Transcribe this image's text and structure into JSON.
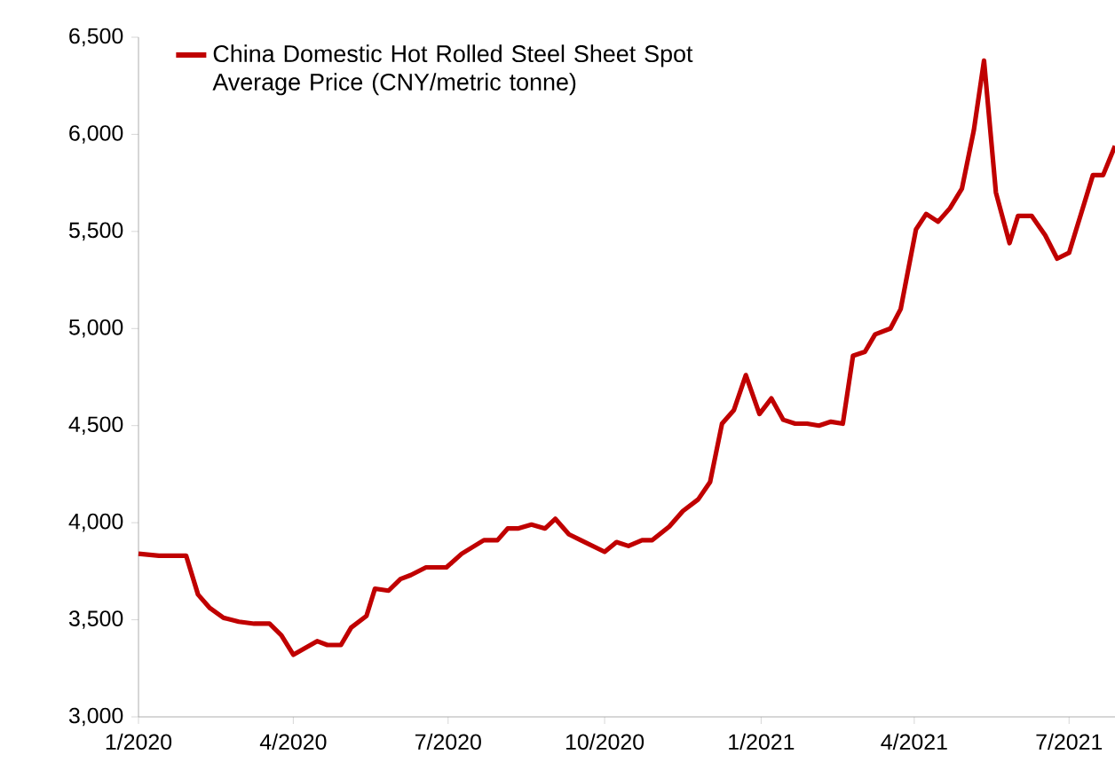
{
  "chart_data": {
    "type": "line",
    "x": [
      "2020-01-01",
      "2020-01-13",
      "2020-01-29",
      "2020-02-05",
      "2020-02-12",
      "2020-02-20",
      "2020-02-29",
      "2020-03-09",
      "2020-03-18",
      "2020-03-25",
      "2020-04-01",
      "2020-04-15",
      "2020-04-21",
      "2020-04-29",
      "2020-05-05",
      "2020-05-14",
      "2020-05-19",
      "2020-05-27",
      "2020-06-03",
      "2020-06-09",
      "2020-06-18",
      "2020-06-30",
      "2020-07-09",
      "2020-07-22",
      "2020-07-30",
      "2020-08-05",
      "2020-08-11",
      "2020-08-19",
      "2020-08-27",
      "2020-09-02",
      "2020-09-10",
      "2020-09-17",
      "2020-10-01",
      "2020-10-08",
      "2020-10-15",
      "2020-10-23",
      "2020-10-29",
      "2020-11-08",
      "2020-11-16",
      "2020-11-25",
      "2020-12-02",
      "2020-12-09",
      "2020-12-16",
      "2020-12-23",
      "2020-12-31",
      "2021-01-07",
      "2021-01-14",
      "2021-01-21",
      "2021-01-28",
      "2021-02-04",
      "2021-02-11",
      "2021-02-18",
      "2021-02-24",
      "2021-03-03",
      "2021-03-09",
      "2021-03-18",
      "2021-03-24",
      "2021-04-02",
      "2021-04-08",
      "2021-04-15",
      "2021-04-22",
      "2021-04-29",
      "2021-05-06",
      "2021-05-12",
      "2021-05-19",
      "2021-05-27",
      "2021-06-01",
      "2021-06-09",
      "2021-06-17",
      "2021-06-24",
      "2021-07-01",
      "2021-07-08",
      "2021-07-15",
      "2021-07-21",
      "2021-07-28"
    ],
    "series": [
      {
        "name": "China Domestic Hot Rolled Steel Sheet Spot Average Price (CNY/metric tonne)",
        "color": "#c00000",
        "values": [
          3840,
          3830,
          3830,
          3630,
          3560,
          3510,
          3490,
          3480,
          3480,
          3420,
          3320,
          3390,
          3370,
          3370,
          3460,
          3520,
          3660,
          3650,
          3710,
          3730,
          3770,
          3770,
          3840,
          3910,
          3910,
          3970,
          3970,
          3990,
          3970,
          4020,
          3940,
          3910,
          3850,
          3900,
          3880,
          3910,
          3910,
          3980,
          4060,
          4120,
          4210,
          4510,
          4580,
          4760,
          4560,
          4640,
          4530,
          4510,
          4510,
          4500,
          4520,
          4510,
          4860,
          4880,
          4970,
          5000,
          5100,
          5510,
          5590,
          5550,
          5620,
          5720,
          6020,
          6380,
          5700,
          5440,
          5580,
          5580,
          5480,
          5360,
          5390,
          5590,
          5790,
          5790,
          5940
        ]
      }
    ],
    "xlim": [
      "2020-01-01",
      "2021-07-28"
    ],
    "xticks": [
      {
        "value": "2020-01-01",
        "label": "1/2020"
      },
      {
        "value": "2020-04-01",
        "label": "4/2020"
      },
      {
        "value": "2020-07-01",
        "label": "7/2020"
      },
      {
        "value": "2020-10-01",
        "label": "10/2020"
      },
      {
        "value": "2021-01-01",
        "label": "1/2021"
      },
      {
        "value": "2021-04-01",
        "label": "4/2021"
      },
      {
        "value": "2021-07-01",
        "label": "7/2021"
      }
    ],
    "ylim": [
      3000,
      6500
    ],
    "yticks": [
      {
        "value": 3000,
        "label": "3,000"
      },
      {
        "value": 3500,
        "label": "3,500"
      },
      {
        "value": 4000,
        "label": "4,000"
      },
      {
        "value": 4500,
        "label": "4,500"
      },
      {
        "value": 5000,
        "label": "5,000"
      },
      {
        "value": 5500,
        "label": "5,500"
      },
      {
        "value": 6000,
        "label": "6,000"
      },
      {
        "value": 6500,
        "label": "6,500"
      }
    ],
    "grid": false,
    "legend": "top left",
    "marker": "none",
    "line_style": "solid"
  }
}
